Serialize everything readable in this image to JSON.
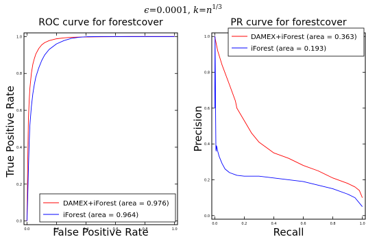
{
  "suptitle": "ϵ=0.0001, k=n^1/3",
  "chart_data": [
    {
      "type": "line",
      "title": "ROC curve for forestcover",
      "xlabel": "False Positive Rate",
      "ylabel": "True Positive Rate",
      "xlim": [
        -0.02,
        1.02
      ],
      "ylim": [
        -0.02,
        1.02
      ],
      "xticks": [
        "0.0",
        "0.2",
        "0.4",
        "0.6",
        "0.8",
        "1.0"
      ],
      "yticks": [
        "0.0",
        "0.2",
        "0.4",
        "0.6",
        "0.8",
        "1.0"
      ],
      "grid": false,
      "legend": "lower-right",
      "series": [
        {
          "name": "DAMEX+iForest (area = 0.976)",
          "color": "#ff0000",
          "x": [
            0.0,
            0.003,
            0.005,
            0.008,
            0.01,
            0.015,
            0.02,
            0.03,
            0.04,
            0.05,
            0.06,
            0.08,
            0.1,
            0.12,
            0.15,
            0.2,
            0.25,
            0.3,
            0.4,
            0.5,
            0.7,
            1.0
          ],
          "y": [
            0.0,
            0.15,
            0.3,
            0.45,
            0.55,
            0.65,
            0.72,
            0.8,
            0.85,
            0.88,
            0.905,
            0.935,
            0.955,
            0.967,
            0.978,
            0.988,
            0.993,
            0.996,
            0.998,
            0.999,
            1.0,
            1.0
          ]
        },
        {
          "name": "iForest (area = 0.964)",
          "color": "#0000ff",
          "x": [
            0.0,
            0.005,
            0.01,
            0.015,
            0.02,
            0.03,
            0.04,
            0.05,
            0.06,
            0.08,
            0.1,
            0.12,
            0.15,
            0.2,
            0.25,
            0.3,
            0.35,
            0.4,
            0.5,
            0.7,
            1.0
          ],
          "y": [
            0.0,
            0.12,
            0.28,
            0.42,
            0.52,
            0.62,
            0.69,
            0.74,
            0.78,
            0.83,
            0.87,
            0.9,
            0.93,
            0.96,
            0.978,
            0.99,
            0.996,
            0.999,
            1.0,
            1.0,
            1.0
          ]
        }
      ]
    },
    {
      "type": "line",
      "title": "PR curve for forestcover",
      "xlabel": "Recall",
      "ylabel": "Precision",
      "xlim": [
        -0.02,
        1.02
      ],
      "ylim": [
        -0.02,
        1.02
      ],
      "xticks": [
        "0.0",
        "0.2",
        "0.4",
        "0.6",
        "0.8",
        "1.0"
      ],
      "yticks": [
        "0.0",
        "0.2",
        "0.4",
        "0.6",
        "0.8",
        "1.0"
      ],
      "grid": false,
      "legend": "upper-right",
      "series": [
        {
          "name": "DAMEX+iForest (area = 0.363)",
          "color": "#ff0000",
          "x": [
            0.0,
            0.005,
            0.02,
            0.05,
            0.1,
            0.14,
            0.15,
            0.2,
            0.25,
            0.3,
            0.35,
            0.4,
            0.5,
            0.6,
            0.7,
            0.8,
            0.9,
            0.95,
            0.98,
            1.0
          ],
          "y": [
            1.0,
            0.98,
            0.92,
            0.84,
            0.73,
            0.64,
            0.6,
            0.53,
            0.46,
            0.41,
            0.38,
            0.35,
            0.32,
            0.28,
            0.25,
            0.21,
            0.18,
            0.16,
            0.14,
            0.1
          ]
        },
        {
          "name": "iForest (area = 0.193)",
          "color": "#0000ff",
          "x": [
            0.0,
            0.002,
            0.004,
            0.006,
            0.008,
            0.01,
            0.012,
            0.015,
            0.02,
            0.03,
            0.05,
            0.07,
            0.1,
            0.15,
            0.2,
            0.3,
            0.4,
            0.5,
            0.6,
            0.7,
            0.8,
            0.9,
            0.95,
            1.0
          ],
          "y": [
            0.6,
            1.0,
            0.8,
            0.55,
            0.37,
            0.36,
            0.39,
            0.38,
            0.36,
            0.33,
            0.29,
            0.26,
            0.24,
            0.225,
            0.22,
            0.22,
            0.21,
            0.2,
            0.19,
            0.17,
            0.15,
            0.12,
            0.1,
            0.05
          ]
        }
      ]
    }
  ]
}
